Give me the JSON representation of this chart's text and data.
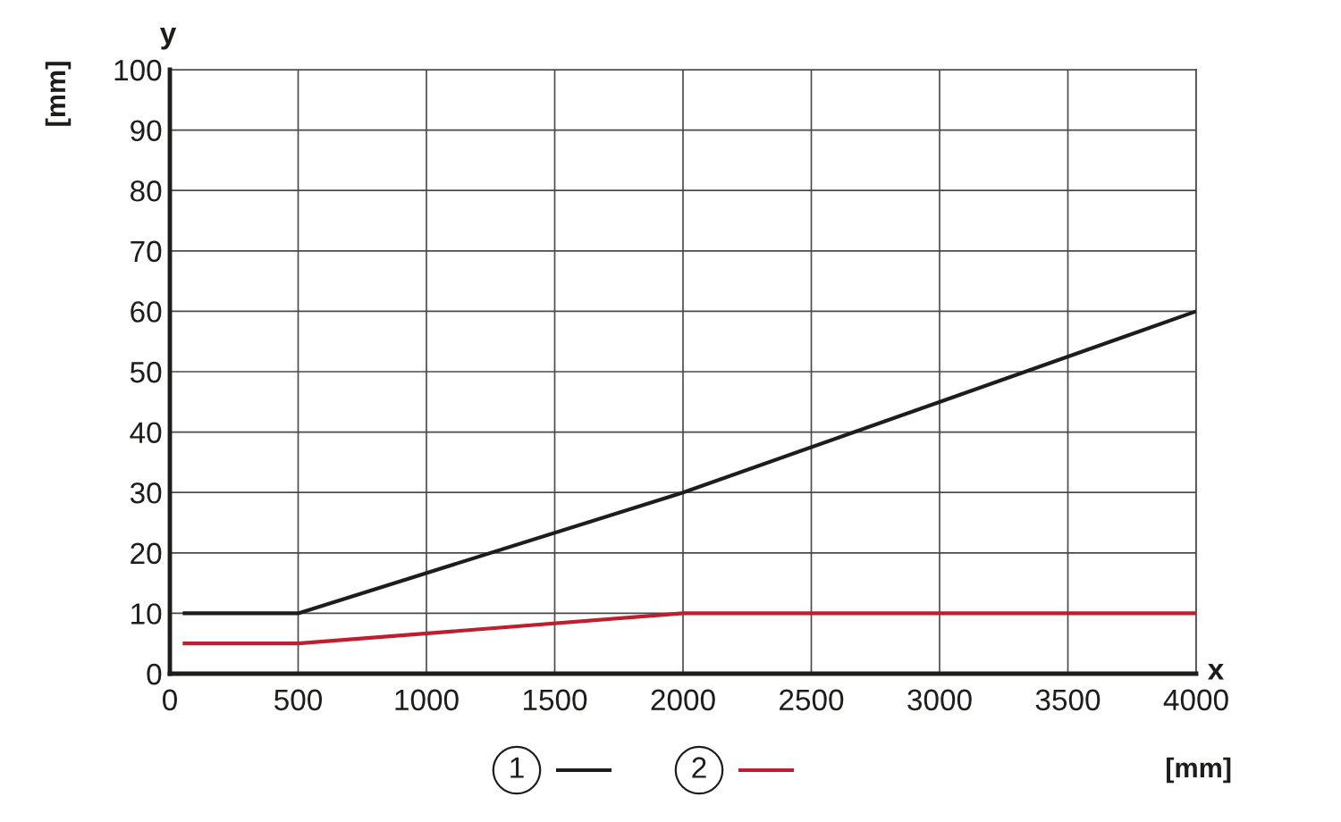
{
  "chart_data": {
    "type": "line",
    "xlabel": "[mm]",
    "ylabel": "[mm]",
    "annotations": [
      "y",
      "x"
    ],
    "x": [
      50,
      500,
      2000,
      4000
    ],
    "series": [
      {
        "name": "1",
        "color": "#1d1d1b",
        "values": [
          10,
          10,
          30,
          60
        ]
      },
      {
        "name": "2",
        "color": "#be1e2d",
        "values": [
          5,
          5,
          10,
          10
        ]
      }
    ],
    "xlim": [
      0,
      4000
    ],
    "xticks": [
      0,
      500,
      1000,
      1500,
      2000,
      2500,
      3000,
      3500,
      4000
    ],
    "ylim": [
      0,
      100
    ],
    "yticks": [
      0,
      10,
      20,
      30,
      40,
      50,
      60,
      70,
      80,
      90,
      100
    ],
    "grid": true,
    "legend": "bottom",
    "marker": "none",
    "line_style": "solid"
  }
}
